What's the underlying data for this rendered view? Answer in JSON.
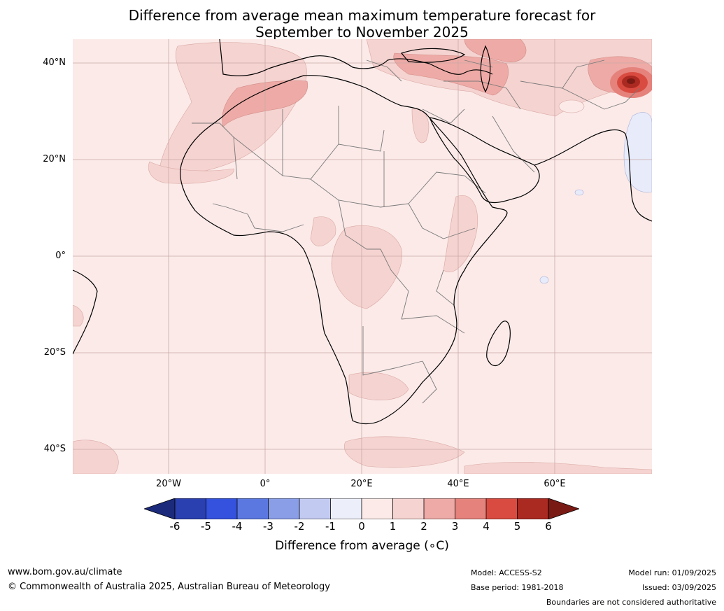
{
  "title": {
    "line1": "Difference from average mean maximum temperature forecast for",
    "line2": "September to November 2025"
  },
  "map": {
    "lat_labels": [
      "40°N",
      "20°N",
      "0°",
      "20°S",
      "40°S"
    ],
    "lon_labels": [
      "20°W",
      "0°",
      "20°E",
      "40°E",
      "60°E"
    ]
  },
  "colorbar": {
    "ticks": [
      "-6",
      "-5",
      "-4",
      "-3",
      "-2",
      "-1",
      "0",
      "1",
      "2",
      "3",
      "4",
      "5",
      "6"
    ],
    "colors": [
      "#1b2a7a",
      "#2a3fb0",
      "#3552de",
      "#5a78e0",
      "#8a9ee8",
      "#c3caf2",
      "#eceef9",
      "#fbeae8",
      "#f5d3d0",
      "#eeaaa6",
      "#e5827c",
      "#d94b40",
      "#aa2a22",
      "#7a1a14"
    ],
    "label": "Difference from average (∘C)"
  },
  "footer": {
    "website": "www.bom.gov.au/climate",
    "copyright": "© Commonwealth of Australia 2025, Australian Bureau of Meteorology",
    "model": "Model: ACCESS-S2",
    "base_period": "Base period: 1981-2018",
    "model_run": "Model run: 01/09/2025",
    "issued": "Issued: 03/09/2025",
    "disclaimer": "Boundaries are not considered authoritative"
  }
}
